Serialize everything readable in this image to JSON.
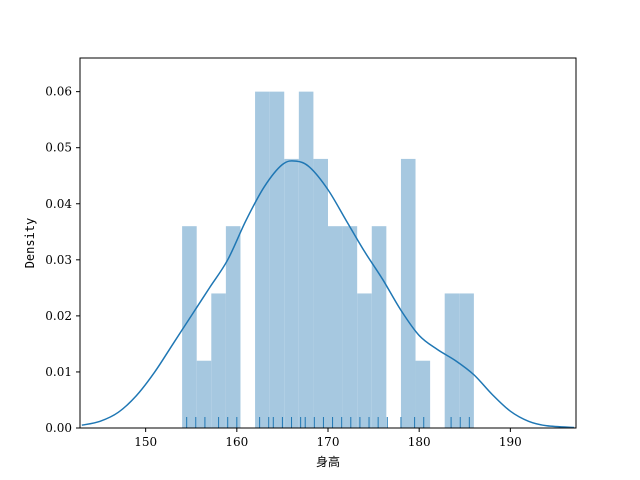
{
  "chart_data": {
    "type": "bar",
    "title": "",
    "xlabel": "身高",
    "ylabel": "Density",
    "xlim": [
      142.8,
      197.2
    ],
    "ylim": [
      0,
      0.066
    ],
    "xticks": [
      150,
      160,
      170,
      180,
      190
    ],
    "yticks": [
      0.0,
      0.01,
      0.02,
      0.03,
      0.04,
      0.05,
      0.06
    ],
    "grid": false,
    "legend": "none",
    "histogram": {
      "bin_edges": [
        154,
        155.6,
        157.2,
        158.8,
        160.4,
        162.0,
        163.6,
        165.2,
        166.8,
        168.4,
        170.0,
        171.6,
        173.2,
        174.8,
        176.4,
        178.0,
        179.6,
        181.2,
        182.8,
        184.4,
        186.0
      ],
      "densities": [
        0.036,
        0.012,
        0.024,
        0.036,
        0.0,
        0.06,
        0.06,
        0.048,
        0.06,
        0.048,
        0.036,
        0.036,
        0.024,
        0.036,
        0.0,
        0.048,
        0.012,
        0.0,
        0.024,
        0.024
      ],
      "color": "#a6c8e0"
    },
    "kde": {
      "color": "#1f77b4",
      "x": [
        143.0,
        145.0,
        147.0,
        149.0,
        151.0,
        153.0,
        155.0,
        157.0,
        159.0,
        161.0,
        163.0,
        165.0,
        166.5,
        168.0,
        170.0,
        172.0,
        174.0,
        176.0,
        178.0,
        180.0,
        182.0,
        184.0,
        186.0,
        188.0,
        190.0,
        192.0,
        194.0,
        197.0
      ],
      "y": [
        0.0005,
        0.0012,
        0.0028,
        0.0058,
        0.01,
        0.015,
        0.02,
        0.025,
        0.03,
        0.037,
        0.043,
        0.047,
        0.0476,
        0.0465,
        0.0425,
        0.037,
        0.0315,
        0.0265,
        0.021,
        0.0165,
        0.014,
        0.012,
        0.0095,
        0.006,
        0.003,
        0.0012,
        0.0004,
        0.0001
      ]
    },
    "rug": {
      "color": "#1f77b4",
      "values": [
        154.5,
        155.5,
        156.5,
        158.0,
        159.0,
        160.0,
        162.5,
        163.5,
        164.0,
        165.0,
        166.0,
        167.0,
        167.5,
        168.5,
        169.5,
        170.5,
        171.5,
        172.5,
        173.5,
        174.5,
        175.5,
        176.5,
        178.0,
        179.5,
        180.5,
        183.5,
        184.5,
        185.5
      ]
    }
  }
}
